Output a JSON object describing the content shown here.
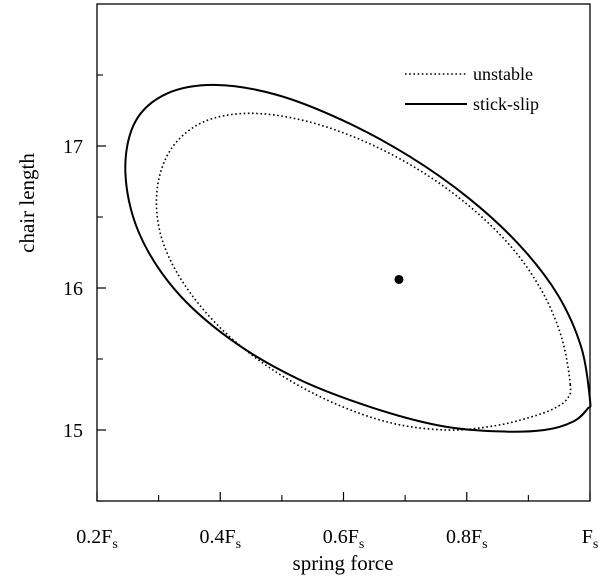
{
  "chart_data": {
    "type": "line",
    "title": "",
    "xlabel": "spring force",
    "ylabel": "chair length",
    "xlim": [
      0.2,
      1.0
    ],
    "ylim": [
      14.5,
      18.0
    ],
    "grid": false,
    "legend_position": "top-right",
    "x_ticks": [
      {
        "value": 0.2,
        "base": "0.2F",
        "sub": "s"
      },
      {
        "value": 0.4,
        "base": "0.4F",
        "sub": "s"
      },
      {
        "value": 0.6,
        "base": "0.6F",
        "sub": "s"
      },
      {
        "value": 0.8,
        "base": "0.8F",
        "sub": "s"
      },
      {
        "value": 1.0,
        "base": "F",
        "sub": "s"
      }
    ],
    "x_minor_ticks": [
      0.3,
      0.5,
      0.7,
      0.9
    ],
    "y_ticks": [
      {
        "value": 15,
        "label": "15"
      },
      {
        "value": 16,
        "label": "16"
      },
      {
        "value": 17,
        "label": "17"
      }
    ],
    "y_minor_ticks": [
      14.5,
      15.5,
      16.5,
      17.5
    ],
    "series": [
      {
        "name": "unstable",
        "style": "dotted",
        "color": "#000000",
        "x": [
          0.968,
          0.954,
          0.923,
          0.874,
          0.806,
          0.723,
          0.63,
          0.535,
          0.446,
          0.373,
          0.322,
          0.298,
          0.303,
          0.338,
          0.4,
          0.483,
          0.579,
          0.677,
          0.769,
          0.846,
          0.903,
          0.941,
          0.963,
          0.968
        ],
        "y": [
          15.32,
          15.65,
          15.97,
          16.28,
          16.57,
          16.83,
          17.04,
          17.18,
          17.23,
          17.17,
          16.99,
          16.71,
          16.38,
          16.05,
          15.72,
          15.43,
          15.2,
          15.05,
          15.0,
          15.03,
          15.09,
          15.15,
          15.22,
          15.32
        ]
      },
      {
        "name": "stick-slip",
        "style": "solid",
        "color": "#000000",
        "x": [
          1.0,
          0.986,
          0.948,
          0.886,
          0.804,
          0.706,
          0.599,
          0.492,
          0.394,
          0.314,
          0.262,
          0.246,
          0.267,
          0.326,
          0.416,
          0.526,
          0.645,
          0.757,
          0.852,
          0.926,
          0.973,
          0.996,
          1.0
        ],
        "y": [
          15.21,
          15.58,
          15.95,
          16.3,
          16.63,
          16.93,
          17.18,
          17.36,
          17.43,
          17.37,
          17.17,
          16.82,
          16.4,
          15.99,
          15.64,
          15.36,
          15.16,
          15.03,
          14.99,
          15.0,
          15.06,
          15.15,
          15.21
        ]
      }
    ],
    "points": [
      {
        "x": 0.69,
        "y": 16.06,
        "marker": "filled-circle",
        "color": "#000000"
      }
    ]
  }
}
